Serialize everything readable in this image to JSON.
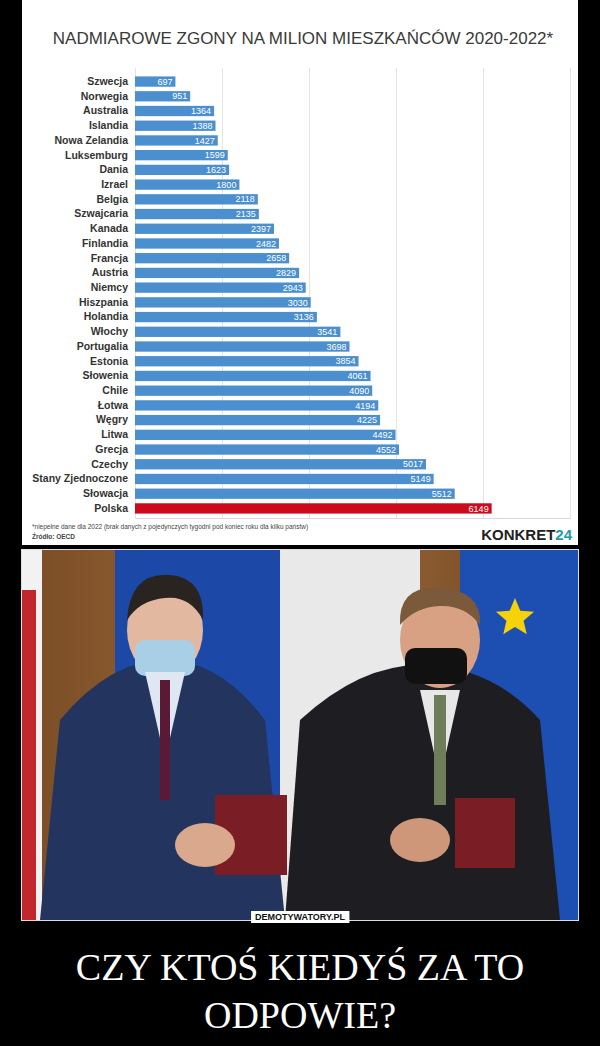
{
  "chart_data": {
    "type": "bar",
    "orientation": "horizontal",
    "title": "NADMIAROWE ZGONY NA MILION MIESZKAŃCÓW 2020-2022*",
    "categories": [
      "Szwecja",
      "Norwegia",
      "Australia",
      "Islandia",
      "Nowa Zelandia",
      "Luksemburg",
      "Dania",
      "Izrael",
      "Belgia",
      "Szwajcaria",
      "Kanada",
      "Finlandia",
      "Francja",
      "Austria",
      "Niemcy",
      "Hiszpania",
      "Holandia",
      "Włochy",
      "Portugalia",
      "Estonia",
      "Słowenia",
      "Chile",
      "Łotwa",
      "Węgry",
      "Litwa",
      "Grecja",
      "Czechy",
      "Stany Zjednoczone",
      "Słowacja",
      "Polska"
    ],
    "values": [
      697,
      951,
      1364,
      1388,
      1427,
      1599,
      1623,
      1800,
      2118,
      2135,
      2397,
      2482,
      2658,
      2829,
      2943,
      3030,
      3136,
      3541,
      3698,
      3854,
      4061,
      4090,
      4194,
      4225,
      4492,
      4552,
      5017,
      5149,
      5512,
      6149
    ],
    "colors": [
      "#4b8fce",
      "#4b8fce",
      "#4b8fce",
      "#4b8fce",
      "#4b8fce",
      "#4b8fce",
      "#4b8fce",
      "#4b8fce",
      "#4b8fce",
      "#4b8fce",
      "#4b8fce",
      "#4b8fce",
      "#4b8fce",
      "#4b8fce",
      "#4b8fce",
      "#4b8fce",
      "#4b8fce",
      "#4b8fce",
      "#4b8fce",
      "#4b8fce",
      "#4b8fce",
      "#4b8fce",
      "#4b8fce",
      "#4b8fce",
      "#4b8fce",
      "#4b8fce",
      "#4b8fce",
      "#4b8fce",
      "#4b8fce",
      "#cc0a1c"
    ],
    "xlim": [
      0,
      7500
    ],
    "xticks": [
      0,
      1500,
      3000,
      4500,
      6000,
      7500
    ],
    "grid": true,
    "tick_labels": "y",
    "data_labels": true,
    "annotations": [
      "*niepełne dane dla 2022 (brak danych z pojedynczych tygodni pod koniec roku dla kilku państw)",
      "Źródło: OECD"
    ]
  },
  "branding": {
    "logo": "KONKRET24",
    "watermark": "DEMOTYWATORY.PL"
  },
  "caption": "CZY KTOŚ KIEDYŚ ZA TO ODPOWIE?"
}
